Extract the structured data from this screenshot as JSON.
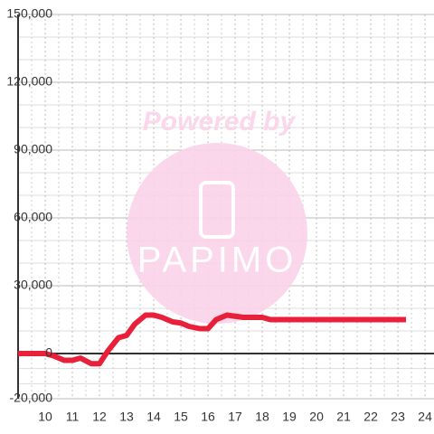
{
  "chart_data": {
    "type": "line",
    "x": [
      9,
      10,
      10.3,
      10.7,
      11,
      11.3,
      11.7,
      12,
      12.3,
      12.7,
      13,
      13.3,
      13.7,
      14,
      14.3,
      14.7,
      15,
      15.3,
      15.7,
      16,
      16.3,
      16.7,
      17,
      17.3,
      18,
      18.3,
      23.3
    ],
    "series": [
      {
        "color": "#e8203a",
        "values": [
          0,
          0,
          -1000,
          -3000,
          -3000,
          -2000,
          -4500,
          -4500,
          1000,
          7000,
          8000,
          13000,
          17000,
          17000,
          16000,
          14000,
          13500,
          12000,
          11000,
          11000,
          15000,
          17000,
          16500,
          16000,
          16000,
          15000,
          15000
        ]
      }
    ],
    "xlim": [
      9,
      24.33
    ],
    "xticks": [
      10,
      11,
      12,
      13,
      14,
      15,
      16,
      17,
      18,
      19,
      20,
      21,
      22,
      23,
      24
    ],
    "ylim": [
      -20000,
      150000
    ],
    "yticks": [
      {
        "value": -20000,
        "label": "-20,000"
      },
      0,
      {
        "value": 30000,
        "label": "30,000"
      },
      {
        "value": 60000,
        "label": "60,000"
      },
      {
        "value": 90000,
        "label": "90,000"
      },
      {
        "value": 120000,
        "label": "120,000"
      },
      {
        "value": 150000,
        "label": "150,000"
      }
    ],
    "grid": true,
    "watermark": {
      "line1": "Powered by",
      "brand": "PAPIMO"
    }
  }
}
